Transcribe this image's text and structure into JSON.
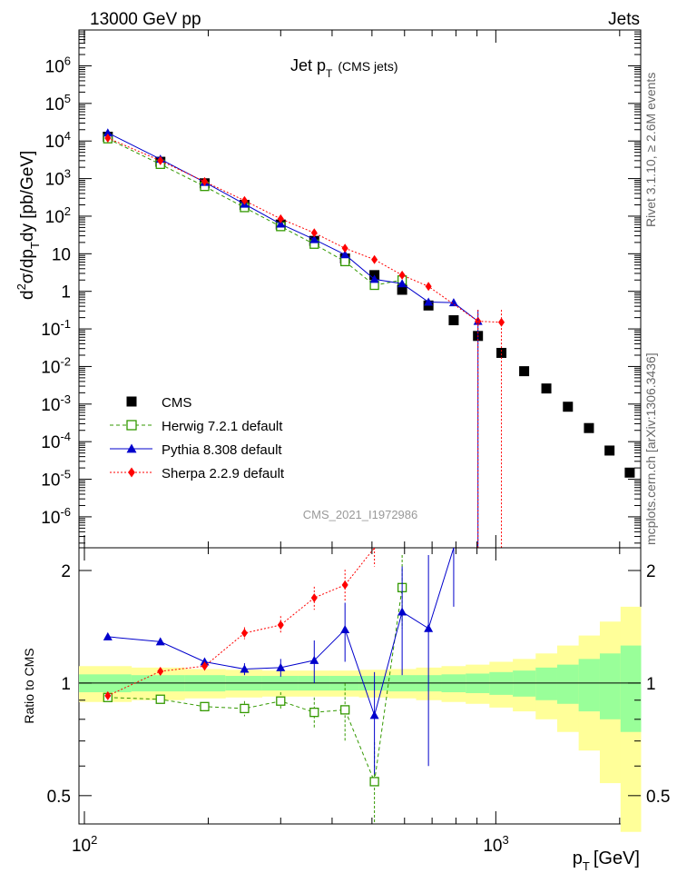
{
  "header": {
    "left": "13000 GeV pp",
    "right": "Jets"
  },
  "side_text": {
    "rivet": "Rivet 3.1.10, ≥ 2.6M events",
    "mcplots": "mcplots.cern.ch [arXiv:1306.3436]"
  },
  "chart_data": [
    {
      "type": "scatter",
      "panel": "main",
      "title": "Jet p_T (CMS jets)",
      "title_main": "Jet p",
      "title_sub": "T",
      "title_suffix": "(CMS jets)",
      "ylabel": "d²σ/dp_T dy [pb/GeV]",
      "ylabel_parts": [
        "d",
        "2",
        "σ/dp",
        "T",
        "dy [pb/GeV]"
      ],
      "yscale": "log",
      "xscale": "log",
      "xlim": [
        97,
        2250
      ],
      "ylim": [
        1.5e-07,
        9000000.0
      ],
      "y_tick_labels": [
        "10^-6",
        "10^-5",
        "10^-4",
        "10^-3",
        "10^-2",
        "10^-1",
        "1",
        "10",
        "10^2",
        "10^3",
        "10^4",
        "10^5",
        "10^6"
      ],
      "watermark": "CMS_2021_I1972986",
      "legend_position": "bottom-left",
      "series": [
        {
          "name": "CMS",
          "color": "#000000",
          "marker": "square-filled",
          "line": "none",
          "x": [
            114,
            153,
            196,
            245,
            300,
            362,
            430,
            507,
            592,
            686,
            790,
            905,
            1032,
            1172,
            1327,
            1497,
            1684,
            1890,
            2116
          ],
          "y": [
            13000,
            2800,
            750,
            200,
            60,
            22,
            7.5,
            2.7,
            1.1,
            0.42,
            0.17,
            0.065,
            0.023,
            0.0075,
            0.0026,
            0.00085,
            0.00023,
            5.8e-05,
            1.5e-05
          ]
        },
        {
          "name": "Herwig 7.2.1 default",
          "color": "#339900",
          "marker": "square-open",
          "line": "dashed",
          "x": [
            114,
            153,
            196,
            245,
            300,
            362,
            430,
            507,
            592
          ],
          "y": [
            11500,
            2400,
            620,
            170,
            53,
            18,
            6.2,
            1.45,
            2.0
          ]
        },
        {
          "name": "Pythia 8.308 default",
          "color": "#0000cc",
          "marker": "triangle-filled",
          "line": "solid",
          "x": [
            114,
            153,
            196,
            245,
            300,
            362,
            430,
            507,
            592,
            686,
            790,
            905
          ],
          "y": [
            16500,
            3300,
            800,
            210,
            62,
            24,
            9.5,
            2.1,
            1.6,
            0.52,
            0.5,
            0.16
          ]
        },
        {
          "name": "Sherpa 2.2.9 default",
          "color": "#ff0000",
          "marker": "diamond-filled",
          "line": "dotted",
          "x": [
            114,
            153,
            196,
            245,
            300,
            362,
            430,
            507,
            592,
            686,
            905,
            1032
          ],
          "y": [
            12000,
            3000,
            830,
            260,
            85,
            36,
            14,
            7.0,
            2.7,
            1.35,
            0.16,
            0.15
          ]
        }
      ]
    },
    {
      "type": "line",
      "panel": "ratio",
      "ylabel": "Ratio to CMS",
      "xlabel": "p_T [GeV]",
      "xlabel_parts": [
        "p",
        "T",
        "[GeV]"
      ],
      "xscale": "log",
      "yscale": "log",
      "xlim": [
        97,
        2250
      ],
      "ylim": [
        0.42,
        2.3
      ],
      "y_tick_labels": [
        "0.5",
        "1",
        "2"
      ],
      "x_tick_labels": [
        "10^2",
        "10^3"
      ],
      "uncertainty_bands": {
        "edges": [
          97,
          130,
          175,
          220,
          270,
          330,
          395,
          465,
          550,
          640,
          738,
          845,
          965,
          1100,
          1250,
          1410,
          1590,
          1790,
          2010,
          2250
        ],
        "stat": [
          0.055,
          0.05,
          0.05,
          0.045,
          0.045,
          0.045,
          0.045,
          0.045,
          0.05,
          0.05,
          0.055,
          0.06,
          0.07,
          0.08,
          0.1,
          0.12,
          0.16,
          0.2,
          0.26
        ],
        "total": [
          0.11,
          0.1,
          0.09,
          0.085,
          0.08,
          0.08,
          0.08,
          0.085,
          0.09,
          0.1,
          0.11,
          0.12,
          0.14,
          0.16,
          0.2,
          0.26,
          0.34,
          0.46,
          0.6
        ],
        "stat_color": "#99ff99",
        "total_color": "#ffff99"
      },
      "series": [
        {
          "name": "Herwig 7.2.1 default",
          "color": "#339900",
          "x": [
            114,
            153,
            196,
            245,
            300,
            362,
            430,
            507,
            592
          ],
          "y": [
            0.915,
            0.905,
            0.865,
            0.855,
            0.895,
            0.835,
            0.848,
            0.545,
            1.8
          ],
          "err": [
            0.02,
            0.02,
            0.02,
            0.04,
            0.05,
            0.08,
            0.15,
            0.15,
            0.4
          ]
        },
        {
          "name": "Pythia 8.308 default",
          "color": "#0000cc",
          "x": [
            114,
            153,
            196,
            245,
            300,
            362,
            430,
            507,
            592,
            686,
            790
          ],
          "y": [
            1.33,
            1.29,
            1.14,
            1.09,
            1.1,
            1.15,
            1.39,
            0.82,
            1.55,
            1.4,
            2.6
          ],
          "err": [
            0.02,
            0.02,
            0.02,
            0.04,
            0.06,
            0.15,
            0.25,
            0.25,
            0.5,
            0.8,
            1.0
          ]
        },
        {
          "name": "Sherpa 2.2.9 default",
          "color": "#ff0000",
          "x": [
            114,
            153,
            196,
            245,
            300,
            362,
            430,
            507
          ],
          "y": [
            0.925,
            1.075,
            1.11,
            1.36,
            1.43,
            1.69,
            1.83,
            2.35
          ],
          "err": [
            0.02,
            0.02,
            0.03,
            0.05,
            0.08,
            0.12,
            0.18,
            0.3
          ]
        }
      ]
    }
  ]
}
